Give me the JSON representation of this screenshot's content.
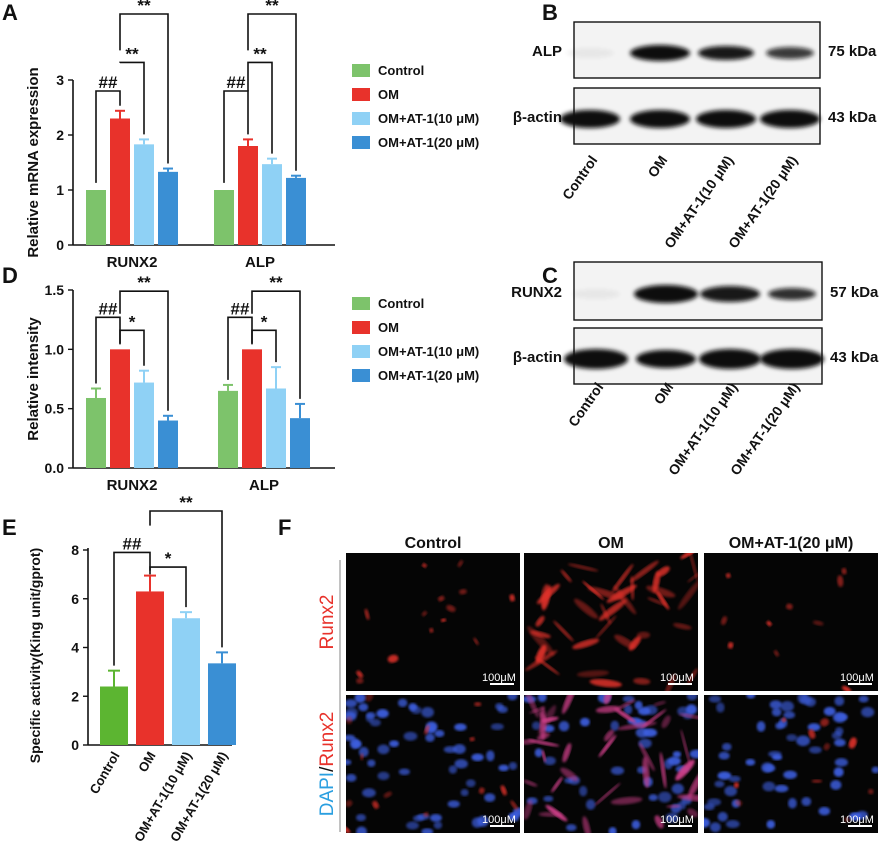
{
  "panel_labels": {
    "a": "A",
    "b": "B",
    "c": "C",
    "d": "D",
    "e": "E",
    "f": "F"
  },
  "colors": {
    "control": "#7dc36b",
    "om": "#e8322b",
    "at10": "#8fd1f5",
    "at20": "#3a8fd4",
    "control_e": "#5cb531"
  },
  "chart_data": [
    {
      "id": "A",
      "type": "bar",
      "ylabel": "Relative mRNA expression",
      "groups": [
        "RUNX2",
        "ALP"
      ],
      "ylim": [
        0,
        3
      ],
      "yticks": [
        "0",
        "1",
        "2",
        "3"
      ],
      "legend": [
        "Control",
        "OM",
        "OM+AT-1(10 μM)",
        "OM+AT-1(20 μM)"
      ],
      "series": [
        {
          "name": "Control",
          "values": [
            1.0,
            1.0
          ],
          "errors": [
            0,
            0
          ]
        },
        {
          "name": "OM",
          "values": [
            2.3,
            1.8
          ],
          "errors": [
            0.14,
            0.12
          ]
        },
        {
          "name": "OM+AT-1(10 μM)",
          "values": [
            1.83,
            1.47
          ],
          "errors": [
            0.09,
            0.1
          ]
        },
        {
          "name": "OM+AT-1(20 μM)",
          "values": [
            1.33,
            1.22
          ],
          "errors": [
            0.06,
            0.04
          ]
        }
      ],
      "sig": {
        "hash": "##",
        "star": "**"
      }
    },
    {
      "id": "D",
      "type": "bar",
      "ylabel": "Relative intensity",
      "groups": [
        "RUNX2",
        "ALP"
      ],
      "ylim": [
        0,
        1.5
      ],
      "yticks": [
        "0.0",
        "0.5",
        "1.0",
        "1.5"
      ],
      "legend": [
        "Control",
        "OM",
        "OM+AT-1(10 μM)",
        "OM+AT-1(20 μM)"
      ],
      "series": [
        {
          "name": "Control",
          "values": [
            0.59,
            0.65
          ],
          "errors": [
            0.08,
            0.05
          ]
        },
        {
          "name": "OM",
          "values": [
            1.0,
            1.0
          ],
          "errors": [
            0,
            0
          ]
        },
        {
          "name": "OM+AT-1(10 μM)",
          "values": [
            0.72,
            0.67
          ],
          "errors": [
            0.1,
            0.18
          ]
        },
        {
          "name": "OM+AT-1(20 μM)",
          "values": [
            0.4,
            0.42
          ],
          "errors": [
            0.04,
            0.12
          ]
        }
      ],
      "sig": {
        "hash": "##",
        "star1": "*",
        "star2": "**"
      }
    },
    {
      "id": "E",
      "type": "bar",
      "ylabel": "Specific activity(King unit/gprot)",
      "categories": [
        "Control",
        "OM",
        "OM+AT-1(10 μM)",
        "OM+AT-1(20 μM)"
      ],
      "values": [
        2.4,
        6.3,
        5.2,
        3.35
      ],
      "errors": [
        0.65,
        0.65,
        0.25,
        0.45
      ],
      "ylim": [
        0,
        8
      ],
      "yticks": [
        "0",
        "2",
        "4",
        "6",
        "8"
      ],
      "sig": {
        "hash": "##",
        "star1": "*",
        "star2": "**"
      }
    }
  ],
  "blot_b": {
    "rows": [
      {
        "protein": "ALP",
        "size": "75 kDa"
      },
      {
        "protein": "β-actin",
        "size": "43 kDa"
      }
    ],
    "lanes": [
      "Control",
      "OM",
      "OM+AT-1(10 μM)",
      "OM+AT-1(20 μM)"
    ]
  },
  "blot_c": {
    "rows": [
      {
        "protein": "RUNX2",
        "size": "57 kDa"
      },
      {
        "protein": "β-actin",
        "size": "43 kDa"
      }
    ],
    "lanes": [
      "Control",
      "OM",
      "OM+AT-1(10 μM)",
      "OM+AT-1(20 μM)"
    ]
  },
  "fluor": {
    "columns": [
      "Control",
      "OM",
      "OM+AT-1(20 μM)"
    ],
    "row1": {
      "label": "Runx2"
    },
    "row2": {
      "label_a": "DAPI",
      "label_sep": "/",
      "label_b": "Runx2"
    },
    "scale": "100μM"
  }
}
